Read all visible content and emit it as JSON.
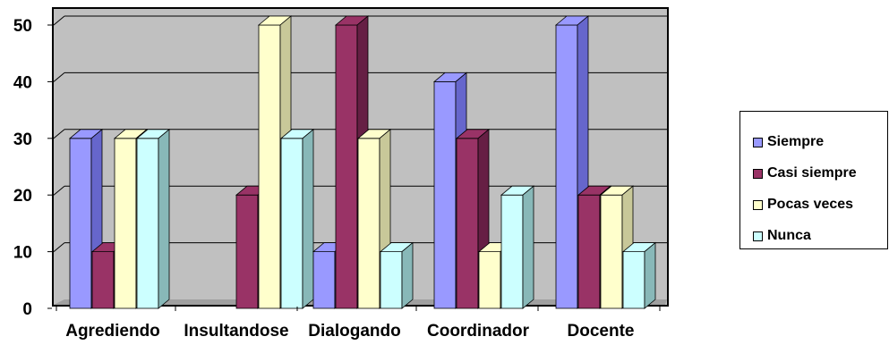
{
  "chart_data": {
    "type": "bar",
    "style": "3d-clustered-column",
    "categories": [
      "Agrediendo",
      "Insultandose",
      "Dialogando",
      "Coordinador",
      "Docente"
    ],
    "series": [
      {
        "name": "Siempre",
        "values": [
          30,
          0,
          10,
          40,
          50
        ],
        "color": "#9999ff",
        "side": "#6666cc"
      },
      {
        "name": "Casi siempre",
        "values": [
          10,
          20,
          50,
          30,
          20
        ],
        "color": "#993366",
        "side": "#661f44"
      },
      {
        "name": "Pocas veces",
        "values": [
          30,
          50,
          30,
          10,
          20
        ],
        "color": "#ffffcc",
        "side": "#c8c899"
      },
      {
        "name": "Nunca",
        "values": [
          30,
          30,
          10,
          20,
          10
        ],
        "color": "#ccffff",
        "side": "#88b8b8"
      }
    ],
    "y_ticks": [
      "0",
      "10",
      "20",
      "30",
      "40",
      "50"
    ],
    "ylim": [
      0,
      50
    ],
    "grid": true,
    "plot_background": "#c0c0c0",
    "legend_position": "right"
  }
}
